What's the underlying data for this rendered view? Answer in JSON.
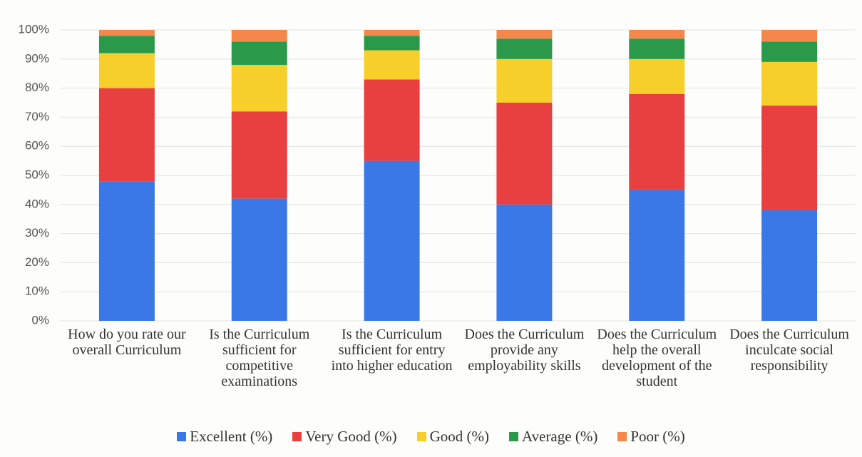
{
  "chart_data": {
    "type": "stacked_bar",
    "categories": [
      "How do you rate our overall Curriculum",
      "Is the Curriculum sufficient for competitive examinations",
      "Is the Curriculum sufficient for entry into higher education",
      "Does the Curriculum provide any employability skills",
      "Does the Curriculum help the overall development of the student",
      "Does the Curriculum inculcate social responsibility"
    ],
    "series": [
      {
        "name": "Excellent (%)",
        "color": "#3b78e7",
        "values": [
          48,
          42,
          55,
          40,
          45,
          38
        ]
      },
      {
        "name": "Very Good (%)",
        "color": "#e84040",
        "values": [
          32,
          30,
          28,
          35,
          33,
          36
        ]
      },
      {
        "name": "Good (%)",
        "color": "#f7cf2a",
        "values": [
          12,
          16,
          10,
          15,
          12,
          15
        ]
      },
      {
        "name": "Average (%)",
        "color": "#2a9a4a",
        "values": [
          6,
          8,
          5,
          7,
          7,
          7
        ]
      },
      {
        "name": "Poor (%)",
        "color": "#f5874a",
        "values": [
          2,
          4,
          2,
          3,
          3,
          4
        ]
      }
    ],
    "ylim": [
      0,
      100
    ],
    "yticks": [
      {
        "value": 0,
        "label": "0%"
      },
      {
        "value": 10,
        "label": "10%"
      },
      {
        "value": 20,
        "label": "20%"
      },
      {
        "value": 30,
        "label": "30%"
      },
      {
        "value": 40,
        "label": "40%"
      },
      {
        "value": 50,
        "label": "50%"
      },
      {
        "value": 60,
        "label": "60%"
      },
      {
        "value": 70,
        "label": "70%"
      },
      {
        "value": 80,
        "label": "80%"
      },
      {
        "value": 90,
        "label": "90%"
      },
      {
        "value": 100,
        "label": "100%"
      }
    ],
    "grid": true,
    "legend": "bottom"
  }
}
